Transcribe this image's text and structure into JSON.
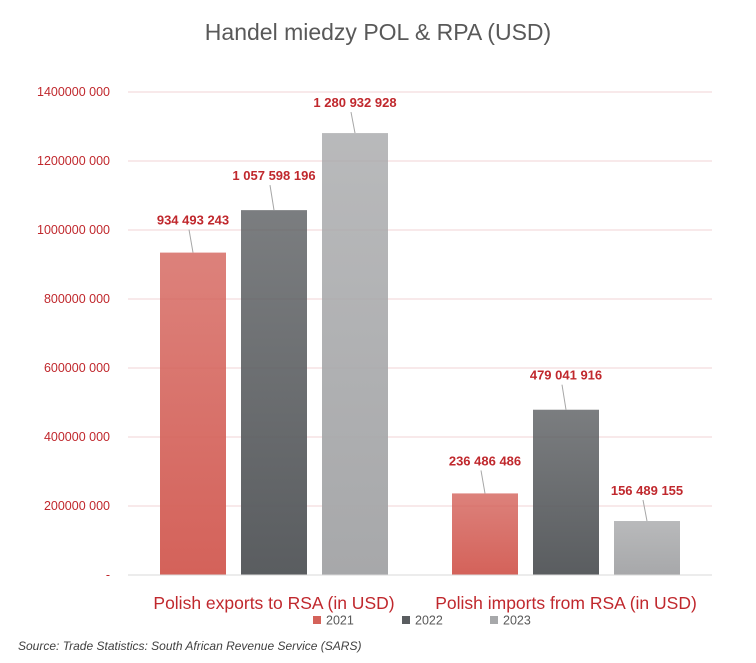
{
  "chart_data": {
    "type": "bar",
    "title": "Handel miedzy POL & RPA (USD)",
    "categories": [
      "Polish exports to RSA (in USD)",
      "Polish imports from RSA (in USD)"
    ],
    "series": [
      {
        "name": "2021",
        "values": [
          934493243,
          236486486
        ],
        "labels": [
          "934 493 243",
          "236 486 486"
        ],
        "color": "#d4625a"
      },
      {
        "name": "2022",
        "values": [
          1057598196,
          479041916
        ],
        "labels": [
          "1 057 598 196",
          "479 041 916"
        ],
        "color": "#5a5d60"
      },
      {
        "name": "2023",
        "values": [
          1280932928,
          156489155
        ],
        "labels": [
          "1 280 932 928",
          "156 489 155"
        ],
        "color": "#a7a8aa"
      }
    ],
    "ylim": [
      0,
      1400000000
    ],
    "yticks": [
      {
        "value": 1400000000,
        "label": "1400000 000"
      },
      {
        "value": 1200000000,
        "label": "1200000 000"
      },
      {
        "value": 1000000000,
        "label": "1000000 000"
      },
      {
        "value": 800000000,
        "label": "800000 000"
      },
      {
        "value": 600000000,
        "label": "600000 000"
      },
      {
        "value": 400000000,
        "label": "400000 000"
      },
      {
        "value": 200000000,
        "label": "200000 000"
      },
      {
        "value": 0,
        "label": "-"
      }
    ],
    "grid": true,
    "legend_position": "bottom",
    "label_color": "#c0282d",
    "grid_color": "#f2d3d5"
  },
  "source": "Source: Trade Statistics: South African Revenue Service (SARS)"
}
